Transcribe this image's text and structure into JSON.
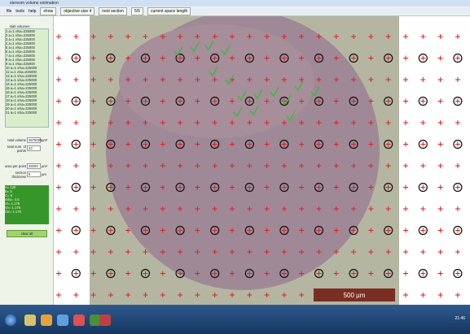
{
  "window": {
    "title": "stereom volume estimation"
  },
  "toolbar": {
    "menu": [
      "file",
      "tools",
      "help"
    ],
    "buttons": [
      "show",
      "objective size 4",
      "next section",
      "5/5",
      "current space length"
    ]
  },
  "sidebar": {
    "list_title": "slab volumes",
    "list_items": [
      "1 a=1 v/sa=225000",
      "2 a=1 v/sa=225000",
      "3 a=1 v/sa=225000",
      "4 a=1 v/sa=225000",
      "5 a=1 v/sa=225000",
      "6 a=1 v/sa=225000",
      "7 a=1 v/sa=225000",
      "8 a=1 v/sa=225000",
      "9 a=1 v/sa=225000",
      "10 a=1 v/sa=225000",
      "11 a=1 v/sa=225000",
      "12 a=1 v/sa=225000",
      "13 a=1 v/sa=225000",
      "14 a=1 v/sa=225000",
      "15 a=1 v/sa=225000",
      "16 a=1 v/sa=225000",
      "17 a=1 v/sa=225000",
      "18 a=1 v/sa=225000",
      "19 a=1 v/sa=225000",
      "20 a=1 v/sa=225000",
      "21 a=1 v/sa=225000"
    ],
    "fields": [
      {
        "label": "total volume",
        "value": "2675000",
        "unit": "µm³"
      },
      {
        "label": "total num. of points",
        "value": "23"
      },
      {
        "label": "area per point",
        "value": "25000",
        "unit": "µm²"
      },
      {
        "label": "section thickness",
        "value": "5",
        "unit": "µm"
      }
    ],
    "results": [
      "A= 120",
      "B= 5",
      "C= 8",
      "ratio= 4.5",
      "Vr= 1.175",
      "Vv= 1.175",
      "CE= 1.175"
    ],
    "clear_button": "clear all"
  },
  "image": {
    "scale_bar": "500 µm"
  },
  "taskbar": {
    "clock": "21:46"
  }
}
